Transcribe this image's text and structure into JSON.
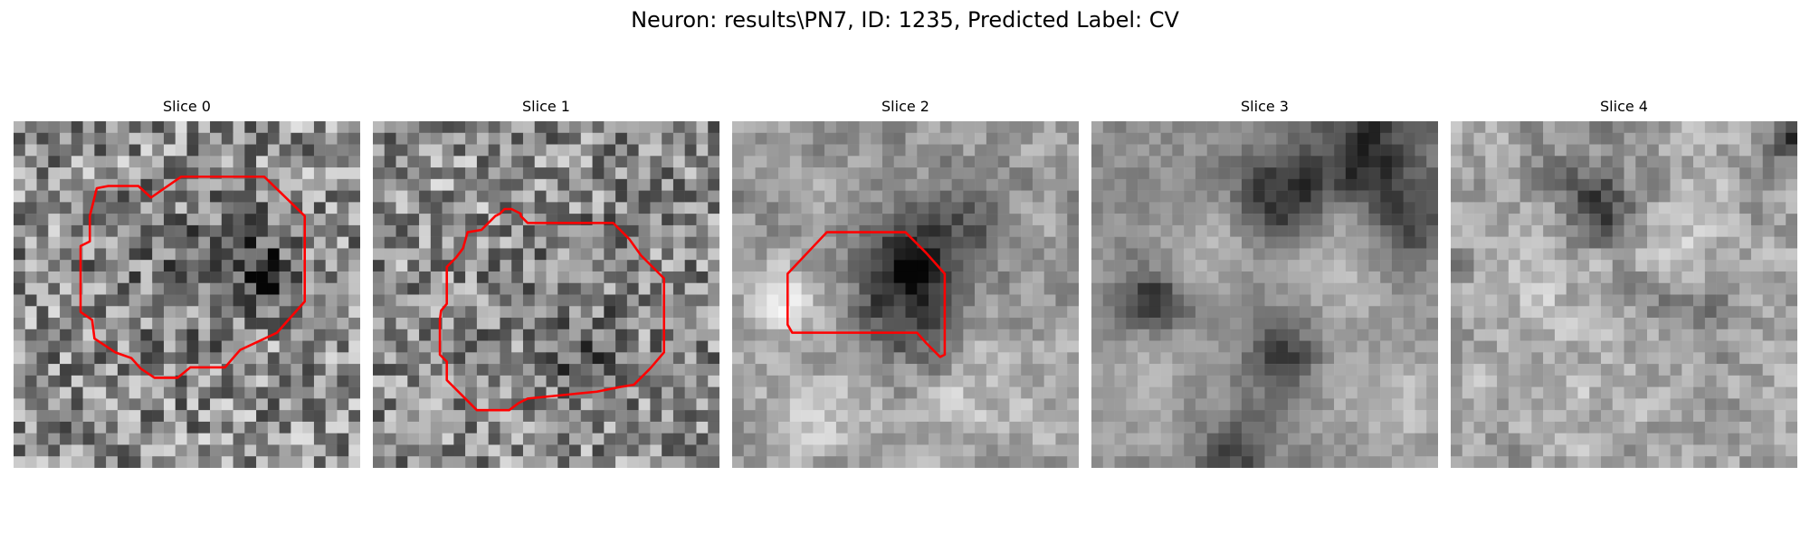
{
  "figure": {
    "title": "Neuron: results\\PN7, ID: 1235, Predicted Label: CV"
  },
  "panels": [
    {
      "label": "Slice 0"
    },
    {
      "label": "Slice 1"
    },
    {
      "label": "Slice 2"
    },
    {
      "label": "Slice 3"
    },
    {
      "label": "Slice 4"
    }
  ],
  "colors": {
    "contour": "#ff0000",
    "colormap": "grayscale",
    "background": "#ffffff"
  }
}
